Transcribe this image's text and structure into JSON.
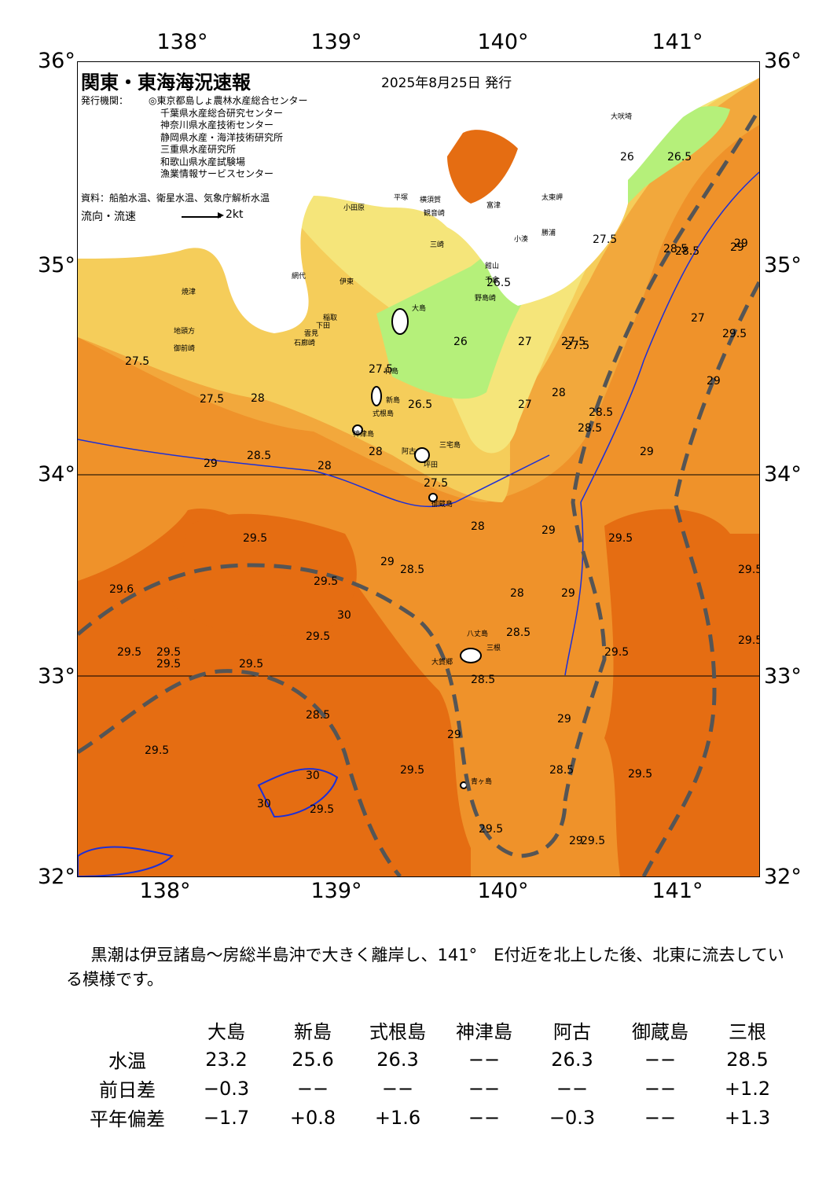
{
  "map": {
    "title": "関東・東海海況速報",
    "date": "2025年8月25日 発行",
    "issuers_label": "発行機関：",
    "issuers": [
      "◎東京都島しょ農林水産総合センター",
      "千葉県水産総合研究センター",
      "神奈川県水産技術センター",
      "静岡県水産・海洋技術研究所",
      "三重県水産研究所",
      "和歌山県水産試験場",
      "漁業情報サービスセンター"
    ],
    "sources": "資料：船舶水温、衛星水温、気象庁解析水温",
    "current_label": "流向・流速",
    "current_scale": "2kt",
    "lon_labels": [
      "138°",
      "139°",
      "140°",
      "141°"
    ],
    "lat_labels": [
      "36°",
      "35°",
      "34°",
      "33°",
      "32°"
    ],
    "contour_labels": [
      "26",
      "26.5",
      "26.5",
      "27",
      "27.5",
      "28.5",
      "29",
      "26",
      "26.5",
      "27",
      "27.5",
      "27.5",
      "28",
      "28",
      "27.5",
      "27",
      "27.5",
      "28",
      "28.5",
      "29",
      "29",
      "28",
      "28.5",
      "29",
      "29.5",
      "29.5",
      "29.5",
      "29.6",
      "29.5",
      "29.5",
      "29.5",
      "29",
      "28.5",
      "29",
      "29",
      "28.5",
      "28",
      "28.5",
      "29.5",
      "28.5",
      "29",
      "29",
      "28.5",
      "29.5",
      "29.5",
      "29.5",
      "29.5",
      "29.5",
      "29.5",
      "29",
      "29.5",
      "29.5",
      "29.5",
      "30",
      "30",
      "30",
      "29.5",
      "28.5",
      "29.5",
      "27.5",
      "28",
      "27.5",
      "29",
      "28.5"
    ],
    "place_names": [
      "大吠埼",
      "太東岬",
      "勝浦",
      "小湊",
      "野島崎",
      "千倉",
      "館山",
      "富津",
      "三崎",
      "横須賀",
      "観音崎",
      "平塚",
      "小田原",
      "網代",
      "伊東",
      "稲取",
      "下田",
      "石廊崎",
      "雲見",
      "焼津",
      "御前崎",
      "地頭方",
      "大島",
      "利島",
      "新島",
      "式根島",
      "神津島",
      "三宅島",
      "阿古",
      "坪田",
      "御蔵島",
      "八丈島",
      "三根",
      "大賀郷",
      "青ヶ島"
    ]
  },
  "summary": "黒潮は伊豆諸島～房総半島沖で大きく離岸し、141°　E付近を北上した後、北東に流去している模様です。",
  "table": {
    "columns": [
      "大島",
      "新島",
      "式根島",
      "神津島",
      "阿古",
      "御蔵島",
      "三根"
    ],
    "rows": [
      {
        "label": "水温",
        "values": [
          "23.2",
          "25.6",
          "26.3",
          "−−",
          "26.3",
          "−−",
          "28.5"
        ]
      },
      {
        "label": "前日差",
        "values": [
          "−0.3",
          "−−",
          "−−",
          "−−",
          "−−",
          "−−",
          "+1.2"
        ]
      },
      {
        "label": "平年偏差",
        "values": [
          "−1.7",
          "+0.8",
          "+1.6",
          "−−",
          "−0.3",
          "−−",
          "+1.3"
        ]
      }
    ]
  },
  "colors": {
    "land": "#ffffff",
    "sst_26": "#b5f07a",
    "sst_27": "#f5e57a",
    "sst_27_5": "#f5cd5a",
    "sst_28_5": "#f2a83c",
    "sst_29": "#ef922a",
    "sst_29_5": "#e56d12",
    "kuroshio_axis": "#555555",
    "isotherm": "#1c2fd8"
  }
}
